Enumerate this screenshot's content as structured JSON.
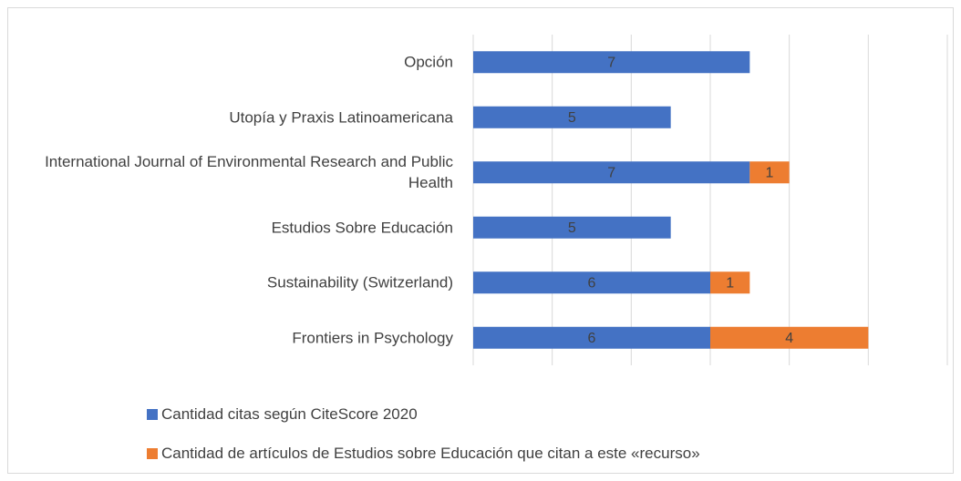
{
  "chart_data": {
    "type": "stacked_bar_horizontal",
    "categories": [
      "Opción",
      "Utopía y Praxis Latinoamericana",
      "International Journal of Environmental Research and Public Health",
      "Estudios Sobre Educación",
      "Sustainability (Switzerland)",
      "Frontiers in Psychology"
    ],
    "series": [
      {
        "name": "Cantidad citas según CiteScore 2020",
        "color": "#4472c4",
        "values": [
          7,
          5,
          7,
          5,
          6,
          6
        ]
      },
      {
        "name": "Cantidad de artículos de Estudios sobre Educación que citan a este «recurso»",
        "color": "#ed7d31",
        "values": [
          null,
          null,
          1,
          null,
          1,
          4
        ]
      }
    ],
    "xlim": [
      0,
      12
    ],
    "xticks": [
      0,
      2,
      4,
      6,
      8,
      10,
      12
    ],
    "grid": true,
    "legend": "bottom"
  }
}
